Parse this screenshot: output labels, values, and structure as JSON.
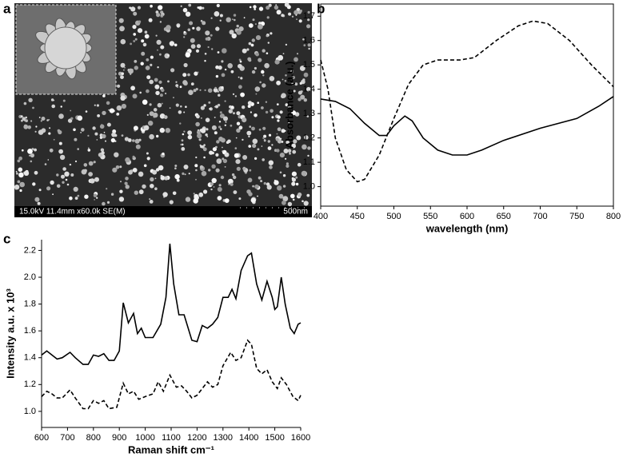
{
  "panel_labels": [
    "a",
    "b",
    "c"
  ],
  "sem_image": {
    "info": "15.0kV 11.4mm x60.0k SE(M)",
    "scale_bar": "500nm"
  },
  "chart_data": [
    {
      "type": "line",
      "x_label": "wavelength (nm)",
      "y_label": "Absorbance (a.u.)",
      "xlim": [
        400,
        800
      ],
      "xticks": [
        400,
        450,
        500,
        550,
        600,
        650,
        700,
        750,
        800
      ],
      "ylim": [
        0.92,
        1.75
      ],
      "yticks": [
        {
          "value": 1.0,
          "label": "1.0"
        },
        1.1,
        1.2,
        1.3,
        1.4,
        1.5,
        1.6,
        1.7
      ],
      "series": [
        {
          "color": "#000000",
          "line_style": "solid",
          "x": [
            400,
            420,
            440,
            460,
            480,
            490,
            500,
            515,
            525,
            540,
            560,
            580,
            600,
            620,
            650,
            700,
            750,
            780,
            800
          ],
          "values": [
            1.36,
            1.35,
            1.32,
            1.26,
            1.21,
            1.21,
            1.25,
            1.29,
            1.27,
            1.2,
            1.15,
            1.13,
            1.13,
            1.15,
            1.19,
            1.24,
            1.28,
            1.33,
            1.37
          ]
        },
        {
          "color": "#000000",
          "line_style": "dashed",
          "x": [
            400,
            410,
            420,
            435,
            450,
            460,
            480,
            500,
            520,
            540,
            560,
            590,
            610,
            640,
            670,
            690,
            710,
            740,
            770,
            800
          ],
          "values": [
            1.52,
            1.4,
            1.2,
            1.07,
            1.02,
            1.03,
            1.13,
            1.28,
            1.42,
            1.5,
            1.52,
            1.52,
            1.53,
            1.6,
            1.66,
            1.68,
            1.67,
            1.6,
            1.5,
            1.41
          ]
        }
      ]
    },
    {
      "type": "line",
      "x_label": "Raman shift cm⁻¹",
      "y_label": "Intensity a.u. x 10³",
      "xlim": [
        600,
        1600
      ],
      "xticks": [
        600,
        700,
        800,
        900,
        1000,
        1100,
        1200,
        1300,
        1400,
        1500,
        1600
      ],
      "ylim": [
        0.88,
        2.28
      ],
      "yticks": [
        {
          "value": 1.0,
          "label": "1.0"
        },
        1.2,
        1.4,
        1.6,
        1.8,
        {
          "value": 2.0,
          "label": "2.0"
        },
        2.2
      ],
      "series": [
        {
          "color": "#000000",
          "line_style": "solid",
          "x": [
            600,
            620,
            640,
            660,
            680,
            710,
            730,
            760,
            780,
            800,
            820,
            840,
            860,
            880,
            900,
            915,
            935,
            955,
            970,
            985,
            1000,
            1030,
            1060,
            1080,
            1095,
            1110,
            1130,
            1150,
            1180,
            1200,
            1220,
            1240,
            1260,
            1280,
            1300,
            1320,
            1335,
            1350,
            1370,
            1395,
            1410,
            1430,
            1450,
            1470,
            1490,
            1500,
            1510,
            1525,
            1540,
            1560,
            1575,
            1590,
            1600
          ],
          "values": [
            1.42,
            1.45,
            1.42,
            1.39,
            1.4,
            1.44,
            1.4,
            1.35,
            1.35,
            1.42,
            1.41,
            1.43,
            1.38,
            1.38,
            1.45,
            1.81,
            1.66,
            1.73,
            1.58,
            1.62,
            1.55,
            1.55,
            1.65,
            1.85,
            2.25,
            1.95,
            1.72,
            1.72,
            1.53,
            1.52,
            1.64,
            1.62,
            1.65,
            1.7,
            1.85,
            1.85,
            1.91,
            1.84,
            2.05,
            2.16,
            2.18,
            1.95,
            1.83,
            1.97,
            1.85,
            1.76,
            1.78,
            2.0,
            1.8,
            1.62,
            1.58,
            1.65,
            1.66
          ]
        },
        {
          "color": "#000000",
          "line_style": "dashed",
          "x": [
            600,
            620,
            640,
            660,
            680,
            710,
            730,
            760,
            780,
            800,
            820,
            840,
            860,
            890,
            915,
            935,
            955,
            975,
            1000,
            1030,
            1050,
            1070,
            1095,
            1120,
            1140,
            1160,
            1180,
            1200,
            1240,
            1260,
            1280,
            1300,
            1330,
            1350,
            1370,
            1395,
            1410,
            1430,
            1450,
            1470,
            1490,
            1510,
            1525,
            1545,
            1570,
            1590,
            1600
          ],
          "values": [
            1.11,
            1.15,
            1.13,
            1.1,
            1.1,
            1.16,
            1.1,
            1.02,
            1.02,
            1.08,
            1.06,
            1.08,
            1.02,
            1.03,
            1.21,
            1.13,
            1.15,
            1.09,
            1.11,
            1.13,
            1.22,
            1.15,
            1.27,
            1.18,
            1.19,
            1.15,
            1.1,
            1.12,
            1.22,
            1.18,
            1.2,
            1.34,
            1.44,
            1.38,
            1.4,
            1.53,
            1.5,
            1.32,
            1.28,
            1.31,
            1.22,
            1.17,
            1.25,
            1.2,
            1.11,
            1.08,
            1.12
          ]
        }
      ]
    }
  ]
}
